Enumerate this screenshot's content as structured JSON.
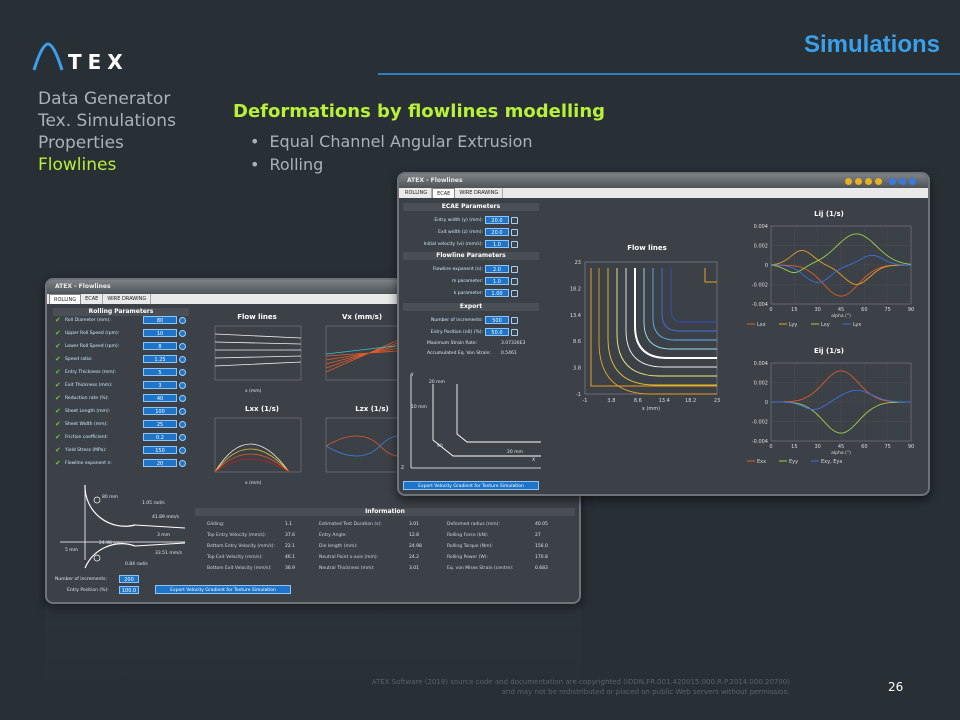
{
  "header": {
    "logo_text": "TEX",
    "title": "Simulations"
  },
  "nav": {
    "items": [
      "Data Generator",
      "Tex. Simulations",
      "Properties",
      "Flowlines"
    ],
    "active": "Flowlines"
  },
  "section": {
    "title": "Deformations by flowlines modelling",
    "bullets": [
      "Equal Channel Angular Extrusion",
      "Rolling"
    ]
  },
  "back_window": {
    "title": "ATEX - Flowlines",
    "tabs": [
      "ROLLING",
      "ECAE",
      "WIRE DRAWING"
    ],
    "panel_title": "Rolling Parameters",
    "params": [
      {
        "label": "Roll Diameter (mm):",
        "value": "80"
      },
      {
        "label": "Upper Roll Speed (rpm):",
        "value": "10"
      },
      {
        "label": "Lower Roll Speed (rpm):",
        "value": "8"
      },
      {
        "label": "Speed ratio:",
        "value": "1.25"
      },
      {
        "label": "Entry Thickness (mm):",
        "value": "5"
      },
      {
        "label": "Exit Thickness (mm):",
        "value": "3"
      },
      {
        "label": "Reduction rate (%):",
        "value": "40"
      },
      {
        "label": "Sheet Length (mm):",
        "value": "100"
      },
      {
        "label": "Sheet Width (mm):",
        "value": "25"
      },
      {
        "label": "Friction coefficient:",
        "value": "0.2"
      },
      {
        "label": "Yield Stress (MPa):",
        "value": "150"
      },
      {
        "label": "Flowline exponent n:",
        "value": "20"
      }
    ],
    "plot_titles": [
      "Flow lines",
      "Vx (mm/s)",
      "Lxx (1/s)",
      "Lzx (1/s)"
    ],
    "x_label": "x (mm)",
    "diagram": {
      "d1": "80 mm",
      "d2": "1.05 rad/s",
      "d3": "41.89 mm/s",
      "d4": "3 mm",
      "d5": "24.98 mm",
      "d6": "5 mm",
      "d7": "33.51 mm/s",
      "d8": "0.84 rad/s"
    },
    "increments": {
      "label": "Number of increments:",
      "value": "200"
    },
    "entry_pos": {
      "label": "Entry Position (%):",
      "value": "100.0"
    },
    "export_label": "Export Velocity Gradient for Texture Simulation",
    "info_title": "Information",
    "info_cols": [
      [
        [
          "Gliding:",
          "1.1"
        ],
        [
          "Top Entry Velocity (mm/s):",
          "37.6"
        ],
        [
          "Bottom Entry Velocity (mm/s):",
          "22.1"
        ],
        [
          "Top Exit Velocity (mm/s):",
          "46.1"
        ],
        [
          "Bottom Exit Velocity (mm/s):",
          "36.9"
        ]
      ],
      [
        [
          "Estimated Test Duration (s):",
          "3.01"
        ],
        [
          "Entry Angle:",
          "12.8"
        ],
        [
          "Die length (mm):",
          "24.98"
        ],
        [
          "Neutral Point x-axis (mm):",
          "24.2"
        ],
        [
          "Neutral Thickness (mm):",
          "3.01"
        ]
      ],
      [
        [
          "Deformed radius (mm):",
          "40.05"
        ],
        [
          "Rolling Force (kN):",
          "27"
        ],
        [
          "Rolling Torque (Nm):",
          "156.0"
        ],
        [
          "Rolling Power (W):",
          "170.8"
        ],
        [
          "Eq. von Mises Strain (centre):",
          "0.683"
        ]
      ]
    ]
  },
  "front_window": {
    "title": "ATEX - Flowlines",
    "tabs": [
      "ROLLING",
      "ECAE",
      "WIRE DRAWING"
    ],
    "ecae_title": "ECAE Parameters",
    "ecae_params": [
      {
        "label": "Entry width (y) (mm):",
        "value": "20.0"
      },
      {
        "label": "Exit width (z) (mm):",
        "value": "20.0"
      },
      {
        "label": "Initial velocity (vi) (mm/s):",
        "value": "1.0"
      }
    ],
    "flow_title": "Flowline Parameters",
    "flow_params": [
      {
        "label": "Flowline exponent (n):",
        "value": "2.0"
      },
      {
        "label": "m parameter:",
        "value": "1.0"
      },
      {
        "label": "k parameter:",
        "value": "1.00"
      }
    ],
    "export_title": "Export",
    "export_params": [
      {
        "label": "Number of increments:",
        "value": "500"
      },
      {
        "label": "Entry Position (n0) (%):",
        "value": "50.0"
      }
    ],
    "max_strain": {
      "label": "Maximum Strain Rate:",
      "value": "3.07330E3"
    },
    "acc_strain": {
      "label": "Accumulated Eq. Von Strain:",
      "value": "0.5461"
    },
    "diagram": {
      "y": "Y",
      "x": "X",
      "z": "Z",
      "w1": "20 mm",
      "w2": "10 mm",
      "w3": "20 mm",
      "angle": "90"
    },
    "export_label": "Export Velocity Gradient for Texture Simulation",
    "flow_plot": {
      "title": "Flow lines",
      "xlabel": "x (mm)",
      "xticks": [
        "-1",
        "3.8",
        "8.6",
        "13.4",
        "18.2",
        "23"
      ],
      "yticks": [
        "23",
        "18.2",
        "13.4",
        "8.6",
        "3.8",
        "-1"
      ]
    },
    "lij_plot": {
      "title": "Lij (1/s)",
      "xlabel": "alpha (°)",
      "xticks": [
        "0",
        "15",
        "30",
        "45",
        "60",
        "75",
        "90"
      ],
      "yticks": [
        "0.004",
        "0.002",
        "0",
        "-0.002",
        "-0.004"
      ],
      "legend": [
        "Lxx",
        "Lyy",
        "Lxy",
        "Lyx"
      ]
    },
    "eij_plot": {
      "title": "Eij (1/s)",
      "xlabel": "alpha (°)",
      "xticks": [
        "0",
        "15",
        "30",
        "45",
        "60",
        "75",
        "90"
      ],
      "yticks": [
        "0.004",
        "0.002",
        "0",
        "-0.002",
        "-0.004"
      ],
      "legend": [
        "Exx",
        "Eyy",
        "Exy, Eyx"
      ]
    }
  },
  "footer": {
    "copyright_1": "ATEX Software (2018) source code and documentation are copyrighted (IDDN.FR.001.420015.000.R.P.2014.000.20700)",
    "copyright_2": "and may not be redistributed or placed on public Web servers without permission.",
    "page_number": "26"
  },
  "colors": {
    "accent": "#3aa0ec",
    "highlight": "#b8f03a",
    "background": "#283036"
  }
}
